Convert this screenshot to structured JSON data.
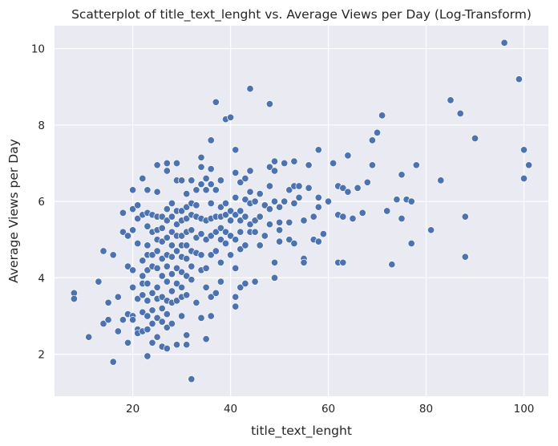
{
  "chart_data": {
    "type": "scatter",
    "title": "Scatterplot of title_text_lenght vs. Average Views per Day (Log-Transform)",
    "xlabel": "title_text_lenght",
    "ylabel": "Average Views per Day",
    "xlim": [
      4,
      105
    ],
    "ylim": [
      0.9,
      10.6
    ],
    "xticks": [
      20,
      40,
      60,
      80,
      100
    ],
    "yticks": [
      2,
      4,
      6,
      8,
      10
    ],
    "grid": true,
    "background": "#EAEAF2",
    "point_color": "#4C72B0",
    "points": [
      [
        8,
        3.6
      ],
      [
        8,
        3.45
      ],
      [
        11,
        2.45
      ],
      [
        13,
        3.9
      ],
      [
        14,
        4.7
      ],
      [
        14,
        2.8
      ],
      [
        15,
        3.35
      ],
      [
        15,
        2.9
      ],
      [
        16,
        4.6
      ],
      [
        16,
        1.8
      ],
      [
        17,
        3.5
      ],
      [
        17,
        2.6
      ],
      [
        18,
        5.7
      ],
      [
        18,
        5.2
      ],
      [
        18,
        2.9
      ],
      [
        19,
        5.1
      ],
      [
        19,
        4.3
      ],
      [
        19,
        3.05
      ],
      [
        19,
        2.3
      ],
      [
        20,
        6.3
      ],
      [
        20,
        5.8
      ],
      [
        20,
        5.25
      ],
      [
        20,
        4.2
      ],
      [
        20,
        3.75
      ],
      [
        20,
        3.0
      ],
      [
        20,
        2.9
      ],
      [
        21,
        5.9
      ],
      [
        21,
        5.55
      ],
      [
        21,
        4.9
      ],
      [
        21,
        3.45
      ],
      [
        21,
        2.65
      ],
      [
        21,
        2.55
      ],
      [
        22,
        6.6
      ],
      [
        22,
        5.65
      ],
      [
        22,
        4.45
      ],
      [
        22,
        4.05
      ],
      [
        22,
        3.85
      ],
      [
        22,
        3.55
      ],
      [
        22,
        3.1
      ],
      [
        22,
        2.6
      ],
      [
        23,
        6.3
      ],
      [
        23,
        5.7
      ],
      [
        23,
        5.35
      ],
      [
        23,
        4.85
      ],
      [
        23,
        4.6
      ],
      [
        23,
        4.2
      ],
      [
        23,
        3.85
      ],
      [
        23,
        3.4
      ],
      [
        23,
        3.0
      ],
      [
        23,
        2.65
      ],
      [
        23,
        1.95
      ],
      [
        24,
        5.65
      ],
      [
        24,
        5.2
      ],
      [
        24,
        4.6
      ],
      [
        24,
        4.3
      ],
      [
        24,
        3.6
      ],
      [
        24,
        3.15
      ],
      [
        24,
        2.8
      ],
      [
        24,
        2.3
      ],
      [
        25,
        6.95
      ],
      [
        25,
        6.25
      ],
      [
        25,
        5.6
      ],
      [
        25,
        5.25
      ],
      [
        25,
        5.0
      ],
      [
        25,
        4.7
      ],
      [
        25,
        4.25
      ],
      [
        25,
        3.75
      ],
      [
        25,
        3.45
      ],
      [
        25,
        2.95
      ],
      [
        25,
        2.45
      ],
      [
        26,
        5.6
      ],
      [
        26,
        5.3
      ],
      [
        26,
        4.95
      ],
      [
        26,
        4.5
      ],
      [
        26,
        4.05
      ],
      [
        26,
        3.5
      ],
      [
        26,
        3.2
      ],
      [
        26,
        2.85
      ],
      [
        26,
        2.2
      ],
      [
        27,
        7.0
      ],
      [
        27,
        6.8
      ],
      [
        27,
        5.8
      ],
      [
        27,
        5.5
      ],
      [
        27,
        5.05
      ],
      [
        27,
        4.6
      ],
      [
        27,
        4.3
      ],
      [
        27,
        3.9
      ],
      [
        27,
        3.4
      ],
      [
        27,
        3.05
      ],
      [
        27,
        2.7
      ],
      [
        27,
        2.15
      ],
      [
        28,
        5.95
      ],
      [
        28,
        5.6
      ],
      [
        28,
        5.2
      ],
      [
        28,
        4.85
      ],
      [
        28,
        4.55
      ],
      [
        28,
        4.1
      ],
      [
        28,
        3.65
      ],
      [
        28,
        3.35
      ],
      [
        28,
        2.8
      ],
      [
        29,
        7.0
      ],
      [
        29,
        6.55
      ],
      [
        29,
        5.75
      ],
      [
        29,
        5.4
      ],
      [
        29,
        5.1
      ],
      [
        29,
        4.7
      ],
      [
        29,
        4.25
      ],
      [
        29,
        3.85
      ],
      [
        29,
        3.4
      ],
      [
        29,
        2.25
      ],
      [
        30,
        6.55
      ],
      [
        30,
        5.75
      ],
      [
        30,
        5.5
      ],
      [
        30,
        5.1
      ],
      [
        30,
        4.85
      ],
      [
        30,
        4.55
      ],
      [
        30,
        4.15
      ],
      [
        30,
        3.75
      ],
      [
        30,
        3.5
      ],
      [
        30,
        3.0
      ],
      [
        31,
        6.2
      ],
      [
        31,
        5.85
      ],
      [
        31,
        5.55
      ],
      [
        31,
        5.2
      ],
      [
        31,
        4.85
      ],
      [
        31,
        4.5
      ],
      [
        31,
        4.05
      ],
      [
        31,
        3.55
      ],
      [
        31,
        2.5
      ],
      [
        31,
        2.25
      ],
      [
        32,
        6.55
      ],
      [
        32,
        5.95
      ],
      [
        32,
        5.65
      ],
      [
        32,
        5.25
      ],
      [
        32,
        4.7
      ],
      [
        32,
        4.3
      ],
      [
        32,
        3.95
      ],
      [
        32,
        1.35
      ],
      [
        33,
        6.3
      ],
      [
        33,
        5.9
      ],
      [
        33,
        5.6
      ],
      [
        33,
        5.05
      ],
      [
        33,
        4.65
      ],
      [
        33,
        3.35
      ],
      [
        34,
        7.15
      ],
      [
        34,
        6.9
      ],
      [
        34,
        6.45
      ],
      [
        34,
        5.55
      ],
      [
        34,
        5.15
      ],
      [
        34,
        4.6
      ],
      [
        34,
        4.2
      ],
      [
        34,
        2.95
      ],
      [
        35,
        6.6
      ],
      [
        35,
        6.3
      ],
      [
        35,
        5.5
      ],
      [
        35,
        5.0
      ],
      [
        35,
        4.25
      ],
      [
        35,
        3.75
      ],
      [
        35,
        2.4
      ],
      [
        36,
        7.6
      ],
      [
        36,
        6.85
      ],
      [
        36,
        6.45
      ],
      [
        36,
        5.95
      ],
      [
        36,
        5.55
      ],
      [
        36,
        5.1
      ],
      [
        36,
        4.6
      ],
      [
        36,
        3.5
      ],
      [
        36,
        3.0
      ],
      [
        37,
        8.6
      ],
      [
        37,
        6.3
      ],
      [
        37,
        5.6
      ],
      [
        37,
        5.2
      ],
      [
        37,
        4.7
      ],
      [
        37,
        3.6
      ],
      [
        38,
        6.55
      ],
      [
        38,
        5.85
      ],
      [
        38,
        5.6
      ],
      [
        38,
        5.3
      ],
      [
        38,
        5.0
      ],
      [
        38,
        4.4
      ],
      [
        38,
        3.9
      ],
      [
        39,
        8.15
      ],
      [
        39,
        5.95
      ],
      [
        39,
        5.65
      ],
      [
        39,
        5.2
      ],
      [
        39,
        4.9
      ],
      [
        40,
        8.2
      ],
      [
        40,
        5.75
      ],
      [
        40,
        5.5
      ],
      [
        40,
        5.1
      ],
      [
        40,
        4.6
      ],
      [
        41,
        7.35
      ],
      [
        41,
        6.75
      ],
      [
        41,
        6.1
      ],
      [
        41,
        5.65
      ],
      [
        41,
        5.0
      ],
      [
        41,
        4.25
      ],
      [
        41,
        3.5
      ],
      [
        41,
        3.25
      ],
      [
        42,
        6.5
      ],
      [
        42,
        5.75
      ],
      [
        42,
        5.5
      ],
      [
        42,
        5.2
      ],
      [
        42,
        4.75
      ],
      [
        42,
        3.75
      ],
      [
        43,
        6.6
      ],
      [
        43,
        6.05
      ],
      [
        43,
        5.6
      ],
      [
        43,
        4.85
      ],
      [
        43,
        3.85
      ],
      [
        44,
        8.95
      ],
      [
        44,
        6.8
      ],
      [
        44,
        6.25
      ],
      [
        44,
        5.95
      ],
      [
        44,
        5.4
      ],
      [
        44,
        5.2
      ],
      [
        45,
        6.0
      ],
      [
        45,
        5.5
      ],
      [
        45,
        5.2
      ],
      [
        45,
        3.9
      ],
      [
        46,
        6.2
      ],
      [
        46,
        5.6
      ],
      [
        46,
        4.85
      ],
      [
        47,
        5.9
      ],
      [
        47,
        5.1
      ],
      [
        48,
        8.55
      ],
      [
        48,
        6.9
      ],
      [
        48,
        6.4
      ],
      [
        48,
        5.8
      ],
      [
        48,
        5.4
      ],
      [
        49,
        7.05
      ],
      [
        49,
        6.8
      ],
      [
        49,
        6.0
      ],
      [
        49,
        4.4
      ],
      [
        49,
        4.0
      ],
      [
        50,
        5.85
      ],
      [
        50,
        5.45
      ],
      [
        50,
        5.25
      ],
      [
        50,
        4.95
      ],
      [
        51,
        7.0
      ],
      [
        51,
        6.0
      ],
      [
        52,
        6.3
      ],
      [
        52,
        5.45
      ],
      [
        52,
        5.0
      ],
      [
        53,
        7.05
      ],
      [
        53,
        6.4
      ],
      [
        53,
        5.95
      ],
      [
        53,
        4.9
      ],
      [
        54,
        6.4
      ],
      [
        54,
        6.1
      ],
      [
        55,
        5.5
      ],
      [
        55,
        4.5
      ],
      [
        55,
        4.4
      ],
      [
        56,
        6.95
      ],
      [
        56,
        6.35
      ],
      [
        57,
        5.6
      ],
      [
        57,
        5.0
      ],
      [
        58,
        7.35
      ],
      [
        58,
        6.1
      ],
      [
        58,
        5.85
      ],
      [
        58,
        4.95
      ],
      [
        59,
        5.15
      ],
      [
        60,
        6.0
      ],
      [
        61,
        7.0
      ],
      [
        62,
        6.4
      ],
      [
        62,
        5.65
      ],
      [
        62,
        4.4
      ],
      [
        63,
        6.35
      ],
      [
        63,
        5.6
      ],
      [
        63,
        4.4
      ],
      [
        64,
        7.2
      ],
      [
        64,
        6.25
      ],
      [
        65,
        5.55
      ],
      [
        66,
        6.35
      ],
      [
        67,
        5.7
      ],
      [
        68,
        6.5
      ],
      [
        69,
        7.6
      ],
      [
        69,
        6.95
      ],
      [
        70,
        7.8
      ],
      [
        71,
        8.25
      ],
      [
        72,
        5.75
      ],
      [
        73,
        4.35
      ],
      [
        74,
        6.05
      ],
      [
        75,
        6.7
      ],
      [
        75,
        5.55
      ],
      [
        76,
        6.05
      ],
      [
        77,
        6.0
      ],
      [
        77,
        4.9
      ],
      [
        78,
        6.95
      ],
      [
        81,
        5.25
      ],
      [
        83,
        6.55
      ],
      [
        85,
        8.65
      ],
      [
        87,
        8.3
      ],
      [
        88,
        5.6
      ],
      [
        88,
        4.55
      ],
      [
        90,
        7.65
      ],
      [
        96,
        10.15
      ],
      [
        99,
        9.2
      ],
      [
        100,
        7.35
      ],
      [
        100,
        6.6
      ],
      [
        101,
        6.95
      ]
    ]
  }
}
